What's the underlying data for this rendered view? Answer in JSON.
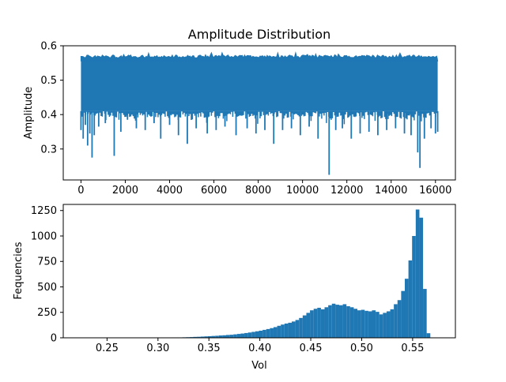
{
  "colors": {
    "series": "#1f77b4",
    "axis": "#000000",
    "background": "#ffffff"
  },
  "chart_data": [
    {
      "type": "line",
      "title": "Amplitude Distribution",
      "xlabel": "",
      "ylabel": "Amplitude",
      "xlim": [
        -800,
        16900
      ],
      "ylim": [
        0.21,
        0.6
      ],
      "xticks": [
        0,
        2000,
        4000,
        6000,
        8000,
        10000,
        12000,
        14000,
        16000
      ],
      "xtick_labels": [
        "0",
        "2000",
        "4000",
        "6000",
        "8000",
        "10000",
        "12000",
        "14000",
        "16000"
      ],
      "yticks": [
        0.3,
        0.4,
        0.5,
        0.6
      ],
      "ytick_labels": [
        "0.3",
        "0.4",
        "0.5",
        "0.6"
      ],
      "band": {
        "x_start": 0,
        "x_end": 16100,
        "upper_typical": 0.565,
        "lower_typical": 0.41
      },
      "series": [
        {
          "x": [
            0,
            100,
            200,
            300,
            400,
            500,
            600,
            800,
            1100,
            1500,
            1800,
            2100,
            2500,
            2900,
            3300,
            3600,
            4000,
            4400,
            4800,
            5200,
            5700,
            6100,
            6500,
            7000,
            7500,
            7900,
            8300,
            8700,
            9100,
            9500,
            9900,
            10300,
            10700,
            11200,
            11500,
            11800,
            12200,
            12600,
            13000,
            13400,
            13800,
            14200,
            14600,
            14900,
            15200,
            15300,
            15500,
            15800,
            16000,
            16100
          ],
          "y": [
            0.355,
            0.33,
            0.37,
            0.31,
            0.345,
            0.275,
            0.34,
            0.365,
            0.375,
            0.28,
            0.35,
            0.385,
            0.36,
            0.355,
            0.375,
            0.33,
            0.37,
            0.34,
            0.315,
            0.36,
            0.345,
            0.355,
            0.365,
            0.34,
            0.36,
            0.345,
            0.355,
            0.315,
            0.355,
            0.36,
            0.34,
            0.365,
            0.33,
            0.225,
            0.355,
            0.36,
            0.33,
            0.345,
            0.35,
            0.34,
            0.355,
            0.36,
            0.345,
            0.34,
            0.29,
            0.245,
            0.33,
            0.36,
            0.345,
            0.35
          ]
        }
      ]
    },
    {
      "type": "bar",
      "title": "",
      "xlabel": "Vol",
      "ylabel": "Fequencies",
      "xlim": [
        0.207,
        0.592
      ],
      "ylim": [
        0,
        1310
      ],
      "xticks": [
        0.25,
        0.3,
        0.35,
        0.4,
        0.45,
        0.5,
        0.55
      ],
      "xtick_labels": [
        "0.25",
        "0.30",
        "0.35",
        "0.40",
        "0.45",
        "0.50",
        "0.55"
      ],
      "yticks": [
        0,
        250,
        500,
        750,
        1000,
        1250
      ],
      "ytick_labels": [
        "0",
        "250",
        "500",
        "750",
        "1000",
        "1250"
      ],
      "bin_start": 0.2237,
      "bin_width": 0.00358,
      "values": [
        1,
        0,
        0,
        0,
        0,
        0,
        1,
        0,
        1,
        0,
        0,
        0,
        0,
        0,
        0,
        1,
        1,
        2,
        2,
        2,
        1,
        2,
        3,
        3,
        3,
        4,
        4,
        4,
        5,
        6,
        7,
        9,
        10,
        12,
        14,
        16,
        18,
        20,
        23,
        25,
        28,
        30,
        34,
        38,
        42,
        47,
        52,
        58,
        64,
        70,
        78,
        86,
        95,
        105,
        118,
        130,
        140,
        148,
        160,
        175,
        195,
        220,
        245,
        270,
        285,
        295,
        280,
        300,
        320,
        335,
        325,
        320,
        330,
        310,
        300,
        285,
        270,
        275,
        265,
        260,
        270,
        255,
        230,
        245,
        260,
        280,
        330,
        370,
        460,
        580,
        760,
        1000,
        1260,
        1180,
        480,
        45,
        3
      ]
    }
  ]
}
